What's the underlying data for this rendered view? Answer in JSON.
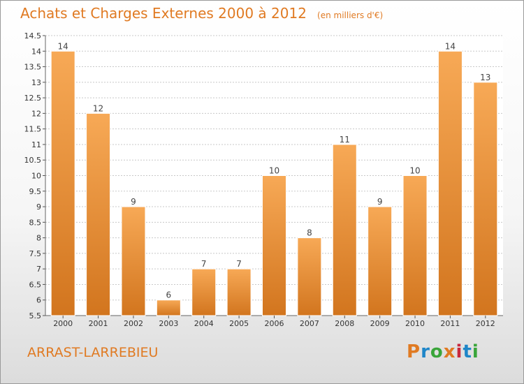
{
  "header": {
    "title": "Achats et Charges Externes 2000 à 2012",
    "unit": "(en milliers d'€)"
  },
  "footer": {
    "commune": "ARRAST-LARREBIEU",
    "logo_text": "Proxiti"
  },
  "colors": {
    "accent": "#e07a22",
    "bar_light": "#f7a956",
    "bar_dark": "#d2751e",
    "logo": [
      "#e07a22",
      "#1f86c8",
      "#3aa53a",
      "#e07a22",
      "#c8283e",
      "#1f86c8",
      "#3aa53a"
    ]
  },
  "chart_data": {
    "type": "bar",
    "categories": [
      "2000",
      "2001",
      "2002",
      "2003",
      "2004",
      "2005",
      "2006",
      "2007",
      "2008",
      "2009",
      "2010",
      "2011",
      "2012"
    ],
    "values": [
      14,
      12,
      9,
      6,
      7,
      7,
      10,
      8,
      11,
      9,
      10,
      14,
      13
    ],
    "data_labels": [
      "14",
      "12",
      "9",
      "6",
      "7",
      "7",
      "10",
      "8",
      "11",
      "9",
      "10",
      "14",
      "13"
    ],
    "ylim": [
      5.5,
      14.5
    ],
    "yticks": [
      5.5,
      6,
      6.5,
      7,
      7.5,
      8,
      8.5,
      9,
      9.5,
      10,
      10.5,
      11,
      11.5,
      12,
      12.5,
      13,
      13.5,
      14,
      14.5
    ],
    "ytick_labels": [
      "5.5",
      "6",
      "6.5",
      "7",
      "7.5",
      "8",
      "8.5",
      "9",
      "9.5",
      "10",
      "10.5",
      "11",
      "11.5",
      "12",
      "12.5",
      "13",
      "13.5",
      "14",
      "14.5"
    ],
    "grid": true,
    "xlabel": "",
    "ylabel": ""
  }
}
